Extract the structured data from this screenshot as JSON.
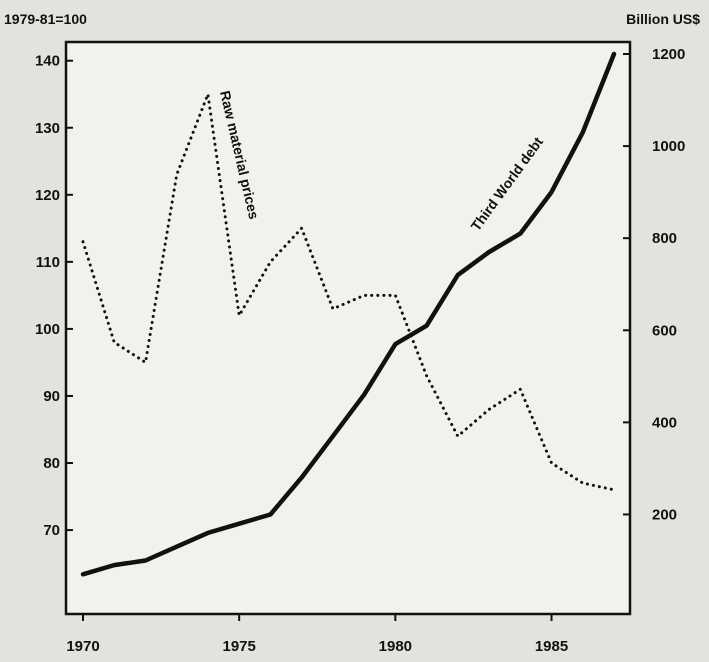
{
  "chart_data": {
    "type": "line",
    "title": "",
    "left_axis_label": "1979-81=100",
    "right_axis_label": "Billion US$",
    "x": {
      "ticks": [
        1970,
        1975,
        1980,
        1985
      ],
      "range": [
        1970,
        1987
      ]
    },
    "y_left": {
      "ticks": [
        70,
        80,
        90,
        100,
        110,
        120,
        130,
        140
      ],
      "range": [
        63,
        141
      ]
    },
    "y_right": {
      "ticks": [
        200,
        400,
        600,
        800,
        1000,
        1200
      ],
      "range": [
        62,
        1200
      ]
    },
    "series": [
      {
        "name": "Raw material prices",
        "axis": "left",
        "style": "dotted",
        "color": "#111111",
        "points": [
          [
            1970,
            113
          ],
          [
            1971,
            98
          ],
          [
            1972,
            95
          ],
          [
            1973,
            123
          ],
          [
            1974,
            135
          ],
          [
            1975,
            102
          ],
          [
            1976,
            110
          ],
          [
            1977,
            115
          ],
          [
            1978,
            103
          ],
          [
            1979,
            105
          ],
          [
            1980,
            105
          ],
          [
            1981,
            93
          ],
          [
            1982,
            84
          ],
          [
            1983,
            88
          ],
          [
            1984,
            91
          ],
          [
            1985,
            80
          ],
          [
            1986,
            77
          ],
          [
            1987,
            76
          ]
        ]
      },
      {
        "name": "Third World debt",
        "axis": "right",
        "style": "solid",
        "color": "#111111",
        "points": [
          [
            1970,
            70
          ],
          [
            1971,
            90
          ],
          [
            1972,
            100
          ],
          [
            1973,
            130
          ],
          [
            1974,
            160
          ],
          [
            1975,
            180
          ],
          [
            1976,
            200
          ],
          [
            1977,
            280
          ],
          [
            1978,
            370
          ],
          [
            1979,
            460
          ],
          [
            1980,
            570
          ],
          [
            1981,
            610
          ],
          [
            1982,
            720
          ],
          [
            1983,
            770
          ],
          [
            1984,
            810
          ],
          [
            1985,
            900
          ],
          [
            1986,
            1030
          ],
          [
            1987,
            1200
          ]
        ]
      }
    ]
  },
  "colors": {
    "background": "#e4e2dc",
    "plot_background": "#f2f1ec",
    "ink": "#111111"
  }
}
